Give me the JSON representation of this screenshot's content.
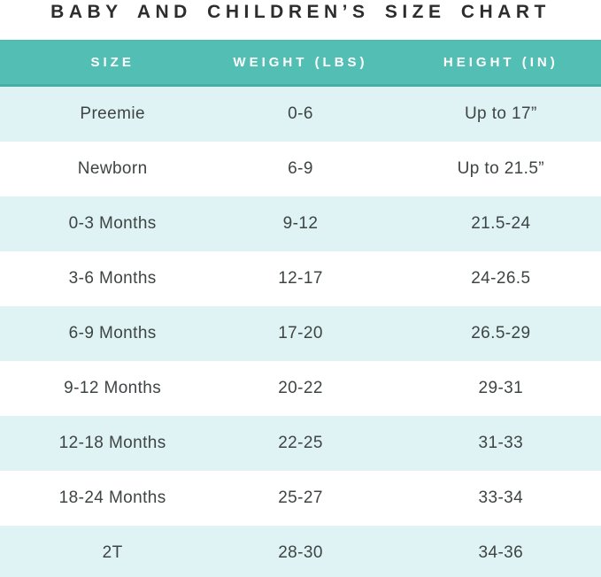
{
  "title": "BABY AND CHILDREN’S SIZE CHART",
  "chart_data": {
    "type": "table",
    "title": "BABY AND CHILDREN’S SIZE CHART",
    "columns": [
      "SIZE",
      "WEIGHT (LBS)",
      "HEIGHT (IN)"
    ],
    "rows": [
      [
        "Preemie",
        "0-6",
        "Up to 17”"
      ],
      [
        "Newborn",
        "6-9",
        "Up to 21.5”"
      ],
      [
        "0-3 Months",
        "9-12",
        "21.5-24"
      ],
      [
        "3-6 Months",
        "12-17",
        "24-26.5"
      ],
      [
        "6-9 Months",
        "17-20",
        "26.5-29"
      ],
      [
        "9-12 Months",
        "20-22",
        "29-31"
      ],
      [
        "12-18 Months",
        "22-25",
        "31-33"
      ],
      [
        "18-24 Months",
        "25-27",
        "33-34"
      ],
      [
        "2T",
        "28-30",
        "34-36"
      ]
    ],
    "layout": {
      "header_position": "top",
      "alternating_row_shading": true,
      "first_shaded_row_index": 0
    }
  },
  "colors": {
    "header_bg": "#53beb3",
    "header_bottom_edge": "#45afa4",
    "header_text": "#ffffff",
    "row_tint_bg": "#dff3f4",
    "row_plain_bg": "#ffffff",
    "cell_text": "#3e4444",
    "title_text": "#2d2d2d",
    "page_bg": "#ffffff"
  }
}
